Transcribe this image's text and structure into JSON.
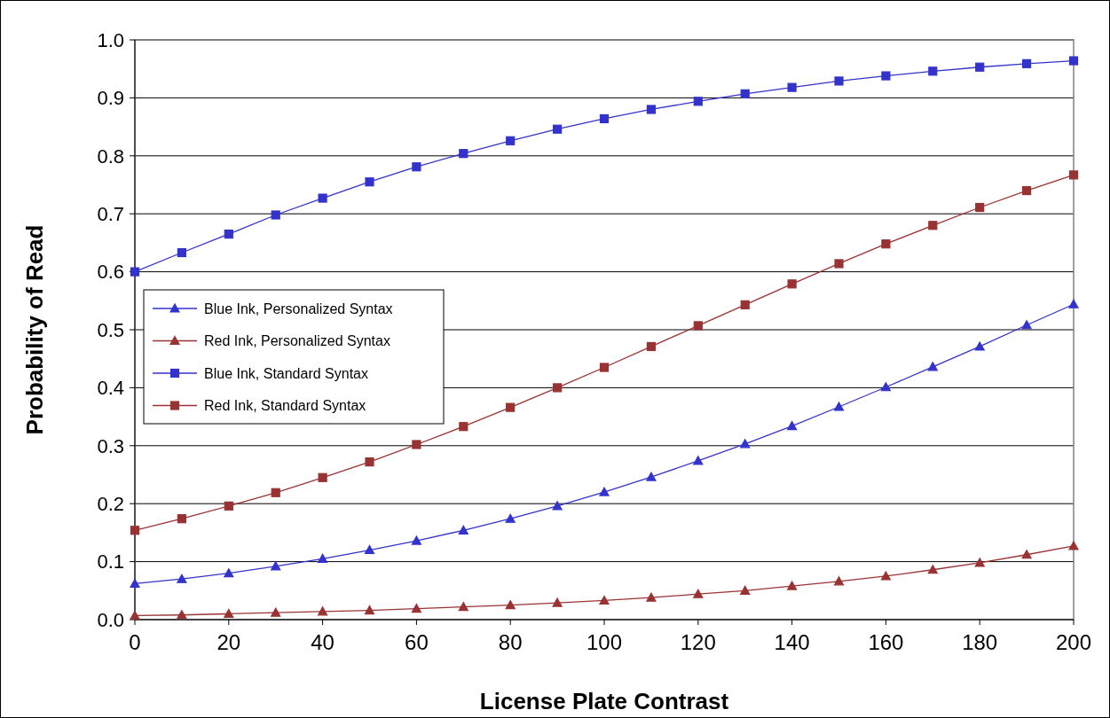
{
  "chart_data": {
    "type": "line",
    "xlabel": "License Plate Contrast",
    "ylabel": "Probability of Read",
    "x": [
      0,
      10,
      20,
      30,
      40,
      50,
      60,
      70,
      80,
      90,
      100,
      110,
      120,
      130,
      140,
      150,
      160,
      170,
      180,
      190,
      200
    ],
    "series": [
      {
        "name": "Blue Ink, Personalized Syntax",
        "color": "#3333cc",
        "marker": "triangle",
        "values": [
          0.062,
          0.07,
          0.08,
          0.092,
          0.105,
          0.12,
          0.136,
          0.154,
          0.174,
          0.196,
          0.22,
          0.246,
          0.274,
          0.303,
          0.334,
          0.367,
          0.401,
          0.436,
          0.471,
          0.508,
          0.544
        ]
      },
      {
        "name": "Red Ink, Personalized Syntax",
        "color": "#993333",
        "marker": "triangle",
        "values": [
          0.007,
          0.008,
          0.01,
          0.012,
          0.014,
          0.016,
          0.019,
          0.022,
          0.025,
          0.029,
          0.033,
          0.038,
          0.044,
          0.05,
          0.058,
          0.066,
          0.075,
          0.086,
          0.098,
          0.112,
          0.127
        ]
      },
      {
        "name": "Blue Ink, Standard Syntax",
        "color": "#3333cc",
        "marker": "square",
        "values": [
          0.6,
          0.633,
          0.665,
          0.698,
          0.727,
          0.755,
          0.781,
          0.804,
          0.826,
          0.846,
          0.864,
          0.88,
          0.894,
          0.907,
          0.918,
          0.929,
          0.938,
          0.946,
          0.953,
          0.959,
          0.964
        ]
      },
      {
        "name": "Red Ink, Standard Syntax",
        "color": "#993333",
        "marker": "square",
        "values": [
          0.154,
          0.174,
          0.196,
          0.219,
          0.245,
          0.272,
          0.302,
          0.333,
          0.366,
          0.4,
          0.435,
          0.471,
          0.507,
          0.543,
          0.579,
          0.614,
          0.648,
          0.68,
          0.711,
          0.74,
          0.767
        ]
      }
    ],
    "xlim": [
      0,
      200
    ],
    "xticks": [
      0,
      20,
      40,
      60,
      80,
      100,
      120,
      140,
      160,
      180,
      200
    ],
    "ylim": [
      0,
      1
    ],
    "yticks": [
      {
        "value": 0,
        "label": "0.0"
      },
      {
        "value": 0.1,
        "label": "0.1"
      },
      {
        "value": 0.2,
        "label": "0.2"
      },
      {
        "value": 0.3,
        "label": "0.3"
      },
      {
        "value": 0.4,
        "label": "0.4"
      },
      {
        "value": 0.5,
        "label": "0.5"
      },
      {
        "value": 0.6,
        "label": "0.6"
      },
      {
        "value": 0.7,
        "label": "0.7"
      },
      {
        "value": 0.8,
        "label": "0.8"
      },
      {
        "value": 0.9,
        "label": "0.9"
      },
      {
        "value": 1,
        "label": "1.0"
      }
    ],
    "grid": "y",
    "legend": "left",
    "line_style": "solid"
  }
}
